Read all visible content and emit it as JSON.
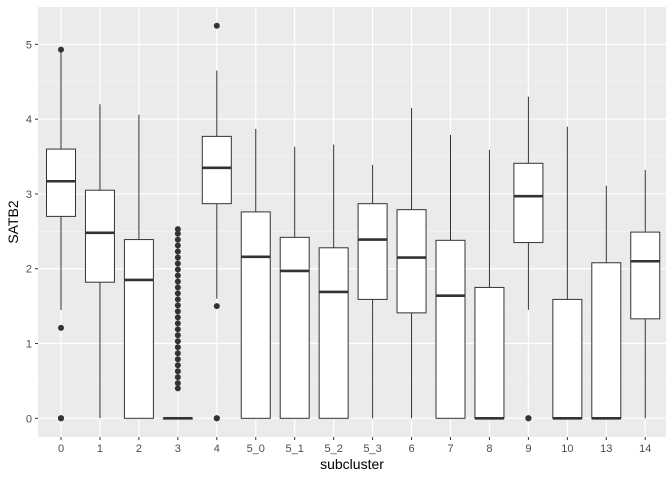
{
  "chart_data": {
    "type": "boxplot",
    "xlabel": "subcluster",
    "ylabel": "SATB2",
    "ylim": [
      -0.25,
      5.5
    ],
    "yticks": [
      0,
      1,
      2,
      3,
      4,
      5
    ],
    "grid": true,
    "legend": "none",
    "colors": {
      "panel_background": "#ebebeb",
      "grid_major": "#ffffff",
      "grid_minor": "#f5f5f5",
      "box_fill": "#ffffff",
      "box_stroke": "#333333",
      "tick_label": "#4d4d4d"
    },
    "categories": [
      "0",
      "1",
      "2",
      "3",
      "4",
      "5_0",
      "5_1",
      "5_2",
      "5_3",
      "6",
      "7",
      "8",
      "9",
      "10",
      "13",
      "14"
    ],
    "boxes": [
      {
        "category": "0",
        "whisker_low": 1.45,
        "q1": 2.7,
        "median": 3.17,
        "q3": 3.6,
        "whisker_high": 4.9,
        "outliers": [
          4.93,
          1.21,
          0,
          0,
          0
        ]
      },
      {
        "category": "1",
        "whisker_low": 0,
        "q1": 1.82,
        "median": 2.48,
        "q3": 3.05,
        "whisker_high": 4.2,
        "outliers": []
      },
      {
        "category": "2",
        "whisker_low": 0,
        "q1": 0,
        "median": 1.85,
        "q3": 2.39,
        "whisker_high": 4.06,
        "outliers": []
      },
      {
        "category": "3",
        "whisker_low": 0,
        "q1": 0,
        "median": 0,
        "q3": 0,
        "whisker_high": 0,
        "outliers": [
          0.4,
          0.47,
          0.55,
          0.63,
          0.71,
          0.79,
          0.87,
          0.95,
          1.03,
          1.11,
          1.19,
          1.27,
          1.35,
          1.43,
          1.51,
          1.59,
          1.67,
          1.75,
          1.83,
          1.91,
          1.99,
          2.07,
          2.15,
          2.23,
          2.31,
          2.39,
          2.47,
          2.53
        ]
      },
      {
        "category": "4",
        "whisker_low": 1.6,
        "q1": 2.87,
        "median": 3.35,
        "q3": 3.77,
        "whisker_high": 4.65,
        "outliers": [
          5.25,
          1.5,
          0,
          0,
          0
        ]
      },
      {
        "category": "5_0",
        "whisker_low": 0,
        "q1": 0,
        "median": 2.16,
        "q3": 2.76,
        "whisker_high": 3.87,
        "outliers": []
      },
      {
        "category": "5_1",
        "whisker_low": 0,
        "q1": 0,
        "median": 1.97,
        "q3": 2.42,
        "whisker_high": 3.63,
        "outliers": []
      },
      {
        "category": "5_2",
        "whisker_low": 0,
        "q1": 0,
        "median": 1.69,
        "q3": 2.28,
        "whisker_high": 3.66,
        "outliers": []
      },
      {
        "category": "5_3",
        "whisker_low": 0,
        "q1": 1.59,
        "median": 2.39,
        "q3": 2.87,
        "whisker_high": 3.39,
        "outliers": []
      },
      {
        "category": "6",
        "whisker_low": 0,
        "q1": 1.41,
        "median": 2.15,
        "q3": 2.79,
        "whisker_high": 4.15,
        "outliers": []
      },
      {
        "category": "7",
        "whisker_low": 0,
        "q1": 0,
        "median": 1.64,
        "q3": 2.38,
        "whisker_high": 3.79,
        "outliers": []
      },
      {
        "category": "8",
        "whisker_low": 0,
        "q1": 0,
        "median": 0,
        "q3": 1.75,
        "whisker_high": 3.59,
        "outliers": []
      },
      {
        "category": "9",
        "whisker_low": 1.45,
        "q1": 2.35,
        "median": 2.97,
        "q3": 3.41,
        "whisker_high": 4.3,
        "outliers": [
          0,
          0,
          0
        ]
      },
      {
        "category": "10",
        "whisker_low": 0,
        "q1": 0,
        "median": 0,
        "q3": 1.59,
        "whisker_high": 3.9,
        "outliers": []
      },
      {
        "category": "13",
        "whisker_low": 0,
        "q1": 0,
        "median": 0,
        "q3": 2.08,
        "whisker_high": 3.11,
        "outliers": []
      },
      {
        "category": "14",
        "whisker_low": 0,
        "q1": 1.33,
        "median": 2.1,
        "q3": 2.49,
        "whisker_high": 3.32,
        "outliers": []
      }
    ]
  }
}
